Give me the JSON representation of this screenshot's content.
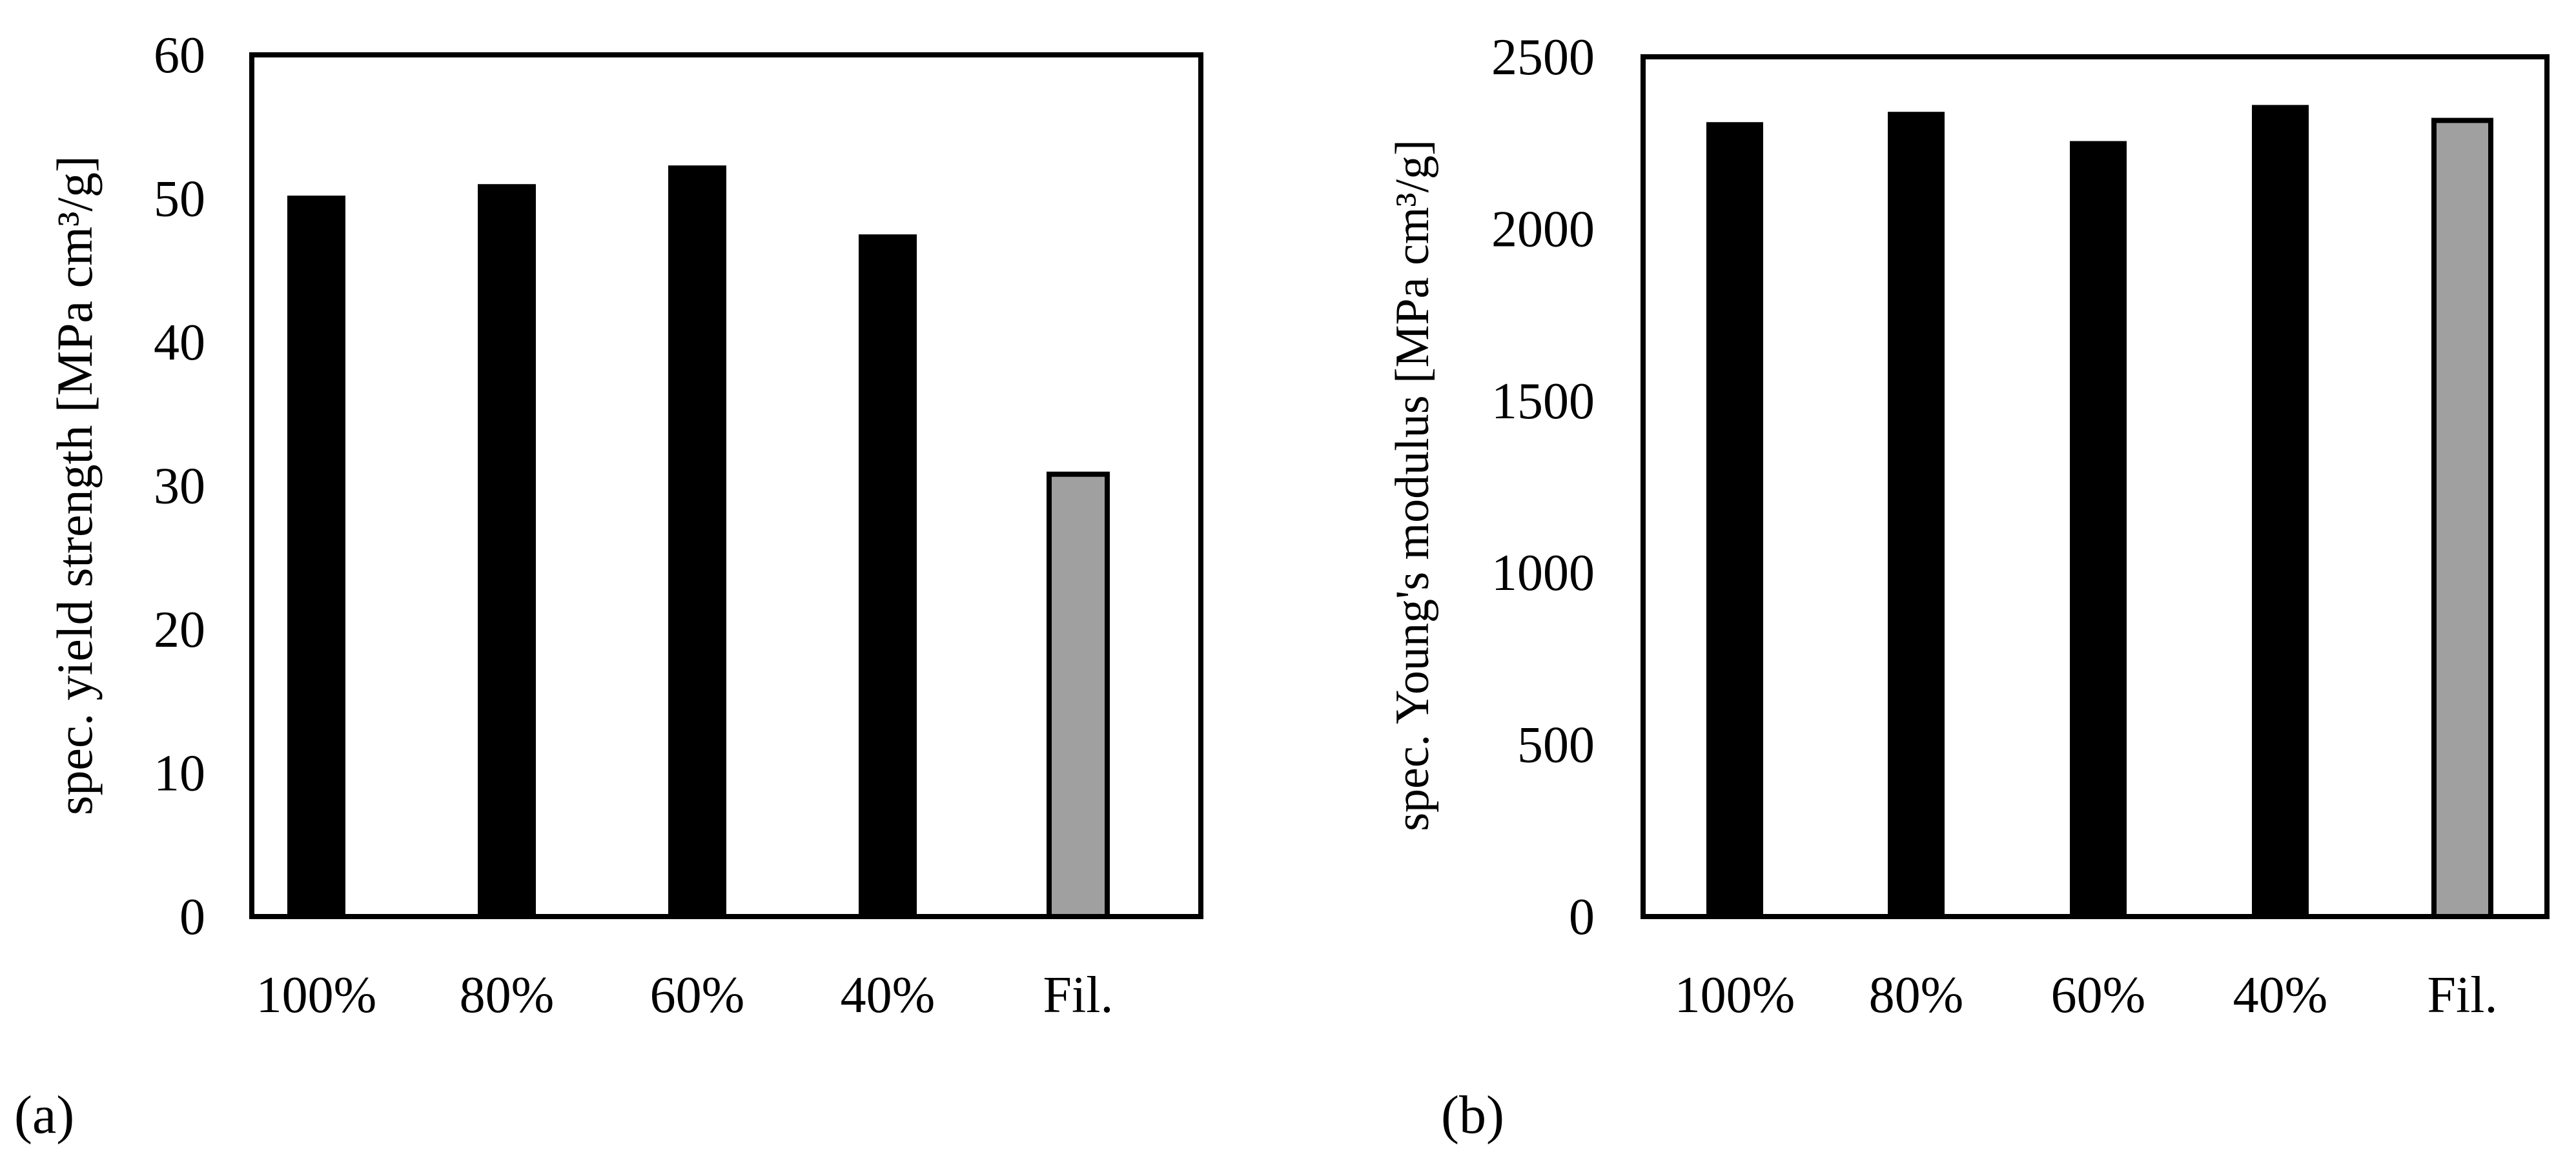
{
  "chart_data": [
    {
      "panel_label": "(a)",
      "type": "bar",
      "ylabel": "spec. yield strength [MPa cm³/g]",
      "ylim": [
        0,
        60
      ],
      "yticks": [
        0,
        10,
        20,
        30,
        40,
        50,
        60
      ],
      "categories": [
        "100%",
        "80%",
        "60%",
        "40%",
        "Fil."
      ],
      "values": [
        50.2,
        51.0,
        52.3,
        47.5,
        30.8
      ],
      "bar_colors": [
        "#000000",
        "#000000",
        "#000000",
        "#000000",
        "#a0a0a0"
      ],
      "grid": false
    },
    {
      "panel_label": "(b)",
      "type": "bar",
      "ylabel": "spec. Young's modulus [MPa cm³/g]",
      "ylim": [
        0,
        2500
      ],
      "yticks": [
        0,
        500,
        1000,
        1500,
        2000,
        2500
      ],
      "categories": [
        "100%",
        "80%",
        "60%",
        "40%",
        "Fil."
      ],
      "values": [
        2310,
        2340,
        2255,
        2360,
        2315
      ],
      "bar_colors": [
        "#000000",
        "#000000",
        "#000000",
        "#000000",
        "#a0a0a0"
      ],
      "grid": false
    }
  ]
}
